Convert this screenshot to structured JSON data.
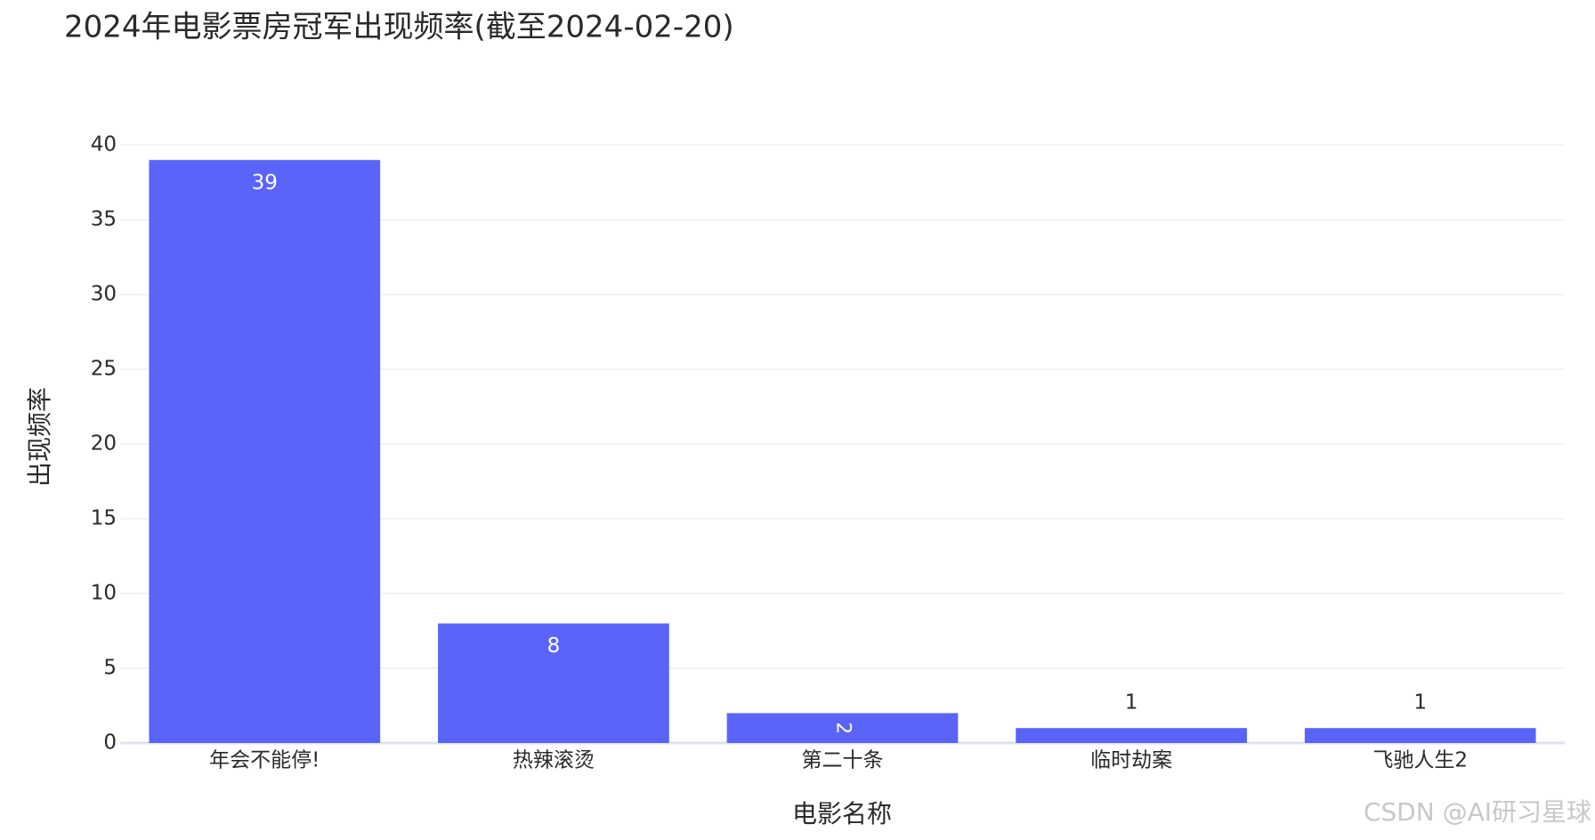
{
  "chart_data": {
    "type": "bar",
    "title": "2024年电影票房冠军出现频率(截至2024-02-20)",
    "x_label": "电影名称",
    "y_label": "出现频率",
    "categories": [
      "年会不能停!",
      "热辣滚烫",
      "第二十条",
      "临时劫案",
      "飞驰人生2"
    ],
    "values": [
      39,
      8,
      2,
      1,
      1
    ],
    "color": "#5a64f9",
    "ylim": [
      0,
      40
    ],
    "yticks": [
      0,
      5,
      10,
      15,
      20,
      25,
      30,
      35,
      40
    ],
    "grid": true,
    "watermark": "CSDN @AI研习星球"
  }
}
